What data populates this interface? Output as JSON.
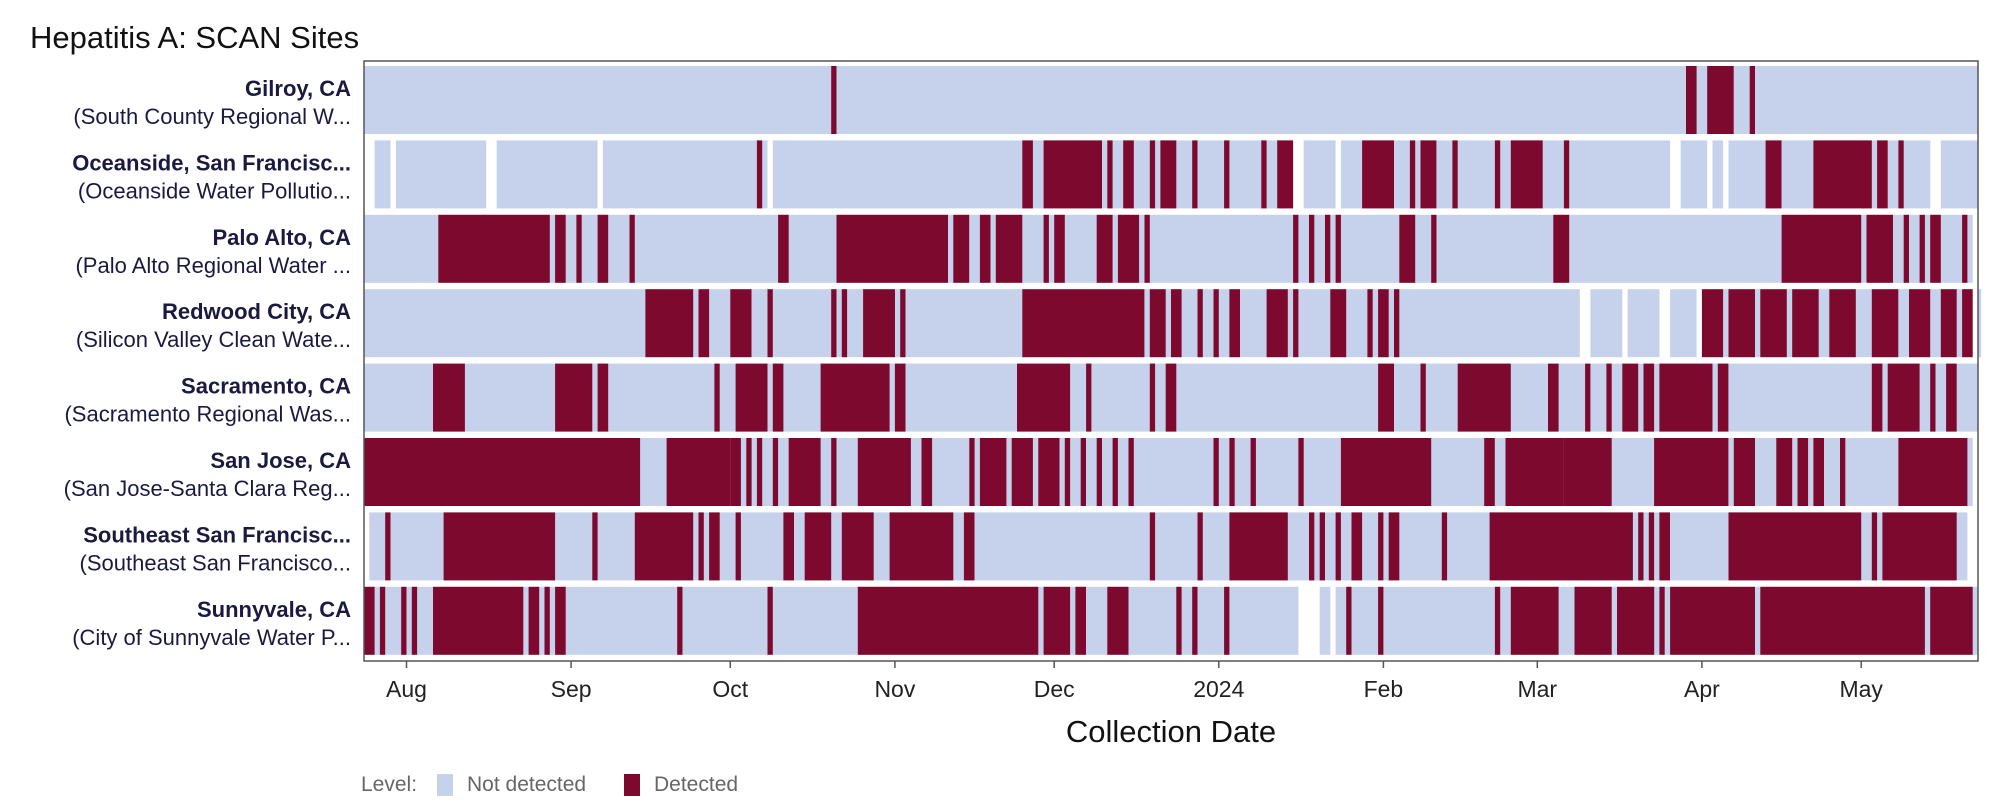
{
  "colors": {
    "not_detected": "#c6d1ec",
    "detected": "#7d0a2e",
    "gap": "#ffffff",
    "frame": "#555555"
  },
  "chart_data": {
    "type": "heatmap",
    "title": "Hepatitis A: SCAN Sites",
    "xlabel": "Collection Date",
    "x_range": [
      "2023-07-24",
      "2024-05-23"
    ],
    "x_ticks": [
      {
        "label": "Aug",
        "date": "2023-08-01"
      },
      {
        "label": "Sep",
        "date": "2023-09-01"
      },
      {
        "label": "Oct",
        "date": "2023-10-01"
      },
      {
        "label": "Nov",
        "date": "2023-11-01"
      },
      {
        "label": "Dec",
        "date": "2023-12-01"
      },
      {
        "label": "2024",
        "date": "2024-01-01"
      },
      {
        "label": "Feb",
        "date": "2024-02-01"
      },
      {
        "label": "Mar",
        "date": "2024-03-01"
      },
      {
        "label": "Apr",
        "date": "2024-04-01"
      },
      {
        "label": "May",
        "date": "2024-05-01"
      }
    ],
    "legend": {
      "title": "Level:",
      "items": [
        "Not detected",
        "Detected"
      ],
      "position": "bottom-left"
    },
    "sites": [
      {
        "name": "Gilroy, CA",
        "plant": "(South County Regional W...",
        "coverage": [
          [
            "2023-07-24",
            "2024-05-23"
          ]
        ],
        "detected": [
          [
            "2023-10-20",
            "2023-10-21"
          ],
          [
            "2024-03-29",
            "2024-03-31"
          ],
          [
            "2024-04-02",
            "2024-04-07"
          ],
          [
            "2024-04-10",
            "2024-04-11"
          ]
        ]
      },
      {
        "name": "Oceanside, San Francisc...",
        "plant": "(Oceanside Water Pollutio...",
        "coverage": [
          [
            "2023-07-26",
            "2023-07-29"
          ],
          [
            "2023-07-30",
            "2023-08-16"
          ],
          [
            "2023-08-18",
            "2023-09-06"
          ],
          [
            "2023-09-07",
            "2023-10-08"
          ],
          [
            "2023-10-09",
            "2024-01-15"
          ],
          [
            "2024-01-17",
            "2024-01-23"
          ],
          [
            "2024-01-24",
            "2024-03-26"
          ],
          [
            "2024-03-28",
            "2024-04-02"
          ],
          [
            "2024-04-03",
            "2024-04-05"
          ],
          [
            "2024-04-06",
            "2024-05-14"
          ],
          [
            "2024-05-16",
            "2024-05-23"
          ]
        ],
        "detected": [
          [
            "2023-10-06",
            "2023-10-07"
          ],
          [
            "2023-11-25",
            "2023-11-27"
          ],
          [
            "2023-11-29",
            "2023-12-10"
          ],
          [
            "2023-12-11",
            "2023-12-12"
          ],
          [
            "2023-12-14",
            "2023-12-16"
          ],
          [
            "2023-12-19",
            "2023-12-20"
          ],
          [
            "2023-12-21",
            "2023-12-24"
          ],
          [
            "2023-12-27",
            "2023-12-28"
          ],
          [
            "2024-01-02",
            "2024-01-03"
          ],
          [
            "2024-01-09",
            "2024-01-10"
          ],
          [
            "2024-01-12",
            "2024-01-15"
          ],
          [
            "2024-01-28",
            "2024-02-03"
          ],
          [
            "2024-02-06",
            "2024-02-07"
          ],
          [
            "2024-02-08",
            "2024-02-11"
          ],
          [
            "2024-02-14",
            "2024-02-15"
          ],
          [
            "2024-02-22",
            "2024-02-23"
          ],
          [
            "2024-02-25",
            "2024-03-02"
          ],
          [
            "2024-03-06",
            "2024-03-07"
          ],
          [
            "2024-04-13",
            "2024-04-16"
          ],
          [
            "2024-04-22",
            "2024-05-03"
          ],
          [
            "2024-05-04",
            "2024-05-06"
          ],
          [
            "2024-05-08",
            "2024-05-09"
          ]
        ]
      },
      {
        "name": "Palo Alto, CA",
        "plant": "(Palo Alto Regional Water ...",
        "coverage": [
          [
            "2023-07-24",
            "2024-05-22"
          ]
        ],
        "detected": [
          [
            "2023-08-07",
            "2023-08-28"
          ],
          [
            "2023-08-29",
            "2023-08-31"
          ],
          [
            "2023-09-02",
            "2023-09-03"
          ],
          [
            "2023-09-06",
            "2023-09-08"
          ],
          [
            "2023-09-12",
            "2023-09-13"
          ],
          [
            "2023-10-10",
            "2023-10-12"
          ],
          [
            "2023-10-21",
            "2023-11-11"
          ],
          [
            "2023-11-12",
            "2023-11-15"
          ],
          [
            "2023-11-17",
            "2023-11-19"
          ],
          [
            "2023-11-20",
            "2023-11-25"
          ],
          [
            "2023-11-29",
            "2023-11-30"
          ],
          [
            "2023-12-01",
            "2023-12-03"
          ],
          [
            "2023-12-09",
            "2023-12-12"
          ],
          [
            "2023-12-13",
            "2023-12-17"
          ],
          [
            "2023-12-18",
            "2023-12-19"
          ],
          [
            "2024-01-15",
            "2024-01-16"
          ],
          [
            "2024-01-18",
            "2024-01-19"
          ],
          [
            "2024-01-21",
            "2024-01-22"
          ],
          [
            "2024-01-23",
            "2024-01-24"
          ],
          [
            "2024-02-04",
            "2024-02-07"
          ],
          [
            "2024-02-10",
            "2024-02-11"
          ],
          [
            "2024-03-04",
            "2024-03-07"
          ],
          [
            "2024-04-16",
            "2024-05-01"
          ],
          [
            "2024-05-02",
            "2024-05-07"
          ],
          [
            "2024-05-09",
            "2024-05-10"
          ],
          [
            "2024-05-12",
            "2024-05-13"
          ],
          [
            "2024-05-14",
            "2024-05-16"
          ],
          [
            "2024-05-20",
            "2024-05-21"
          ]
        ]
      },
      {
        "name": "Redwood City, CA",
        "plant": "(Silicon Valley Clean Wate...",
        "coverage": [
          [
            "2023-07-24",
            "2024-03-09"
          ],
          [
            "2024-03-11",
            "2024-03-17"
          ],
          [
            "2024-03-18",
            "2024-03-24"
          ],
          [
            "2024-03-26",
            "2024-03-31"
          ],
          [
            "2024-04-02",
            "2024-05-12"
          ],
          [
            "2024-05-13",
            "2024-05-22"
          ],
          [
            "2024-05-23",
            "2024-05-23"
          ]
        ],
        "detected": [
          [
            "2023-09-15",
            "2023-09-24"
          ],
          [
            "2023-09-25",
            "2023-09-27"
          ],
          [
            "2023-10-01",
            "2023-10-05"
          ],
          [
            "2023-10-08",
            "2023-10-09"
          ],
          [
            "2023-10-20",
            "2023-10-21"
          ],
          [
            "2023-10-22",
            "2023-10-23"
          ],
          [
            "2023-10-26",
            "2023-11-01"
          ],
          [
            "2023-11-02",
            "2023-11-03"
          ],
          [
            "2023-11-25",
            "2023-12-18"
          ],
          [
            "2023-12-19",
            "2023-12-22"
          ],
          [
            "2023-12-23",
            "2023-12-25"
          ],
          [
            "2023-12-28",
            "2023-12-29"
          ],
          [
            "2023-12-31",
            "2024-01-01"
          ],
          [
            "2024-01-03",
            "2024-01-05"
          ],
          [
            "2024-01-10",
            "2024-01-14"
          ],
          [
            "2024-01-15",
            "2024-01-16"
          ],
          [
            "2024-01-22",
            "2024-01-25"
          ],
          [
            "2024-01-29",
            "2024-01-30"
          ],
          [
            "2024-01-31",
            "2024-02-02"
          ],
          [
            "2024-02-03",
            "2024-02-04"
          ],
          [
            "2024-04-01",
            "2024-04-05"
          ],
          [
            "2024-04-06",
            "2024-04-11"
          ],
          [
            "2024-04-12",
            "2024-04-17"
          ],
          [
            "2024-04-18",
            "2024-04-23"
          ],
          [
            "2024-04-25",
            "2024-04-30"
          ],
          [
            "2024-05-03",
            "2024-05-08"
          ],
          [
            "2024-05-10",
            "2024-05-14"
          ],
          [
            "2024-05-16",
            "2024-05-19"
          ],
          [
            "2024-05-20",
            "2024-05-22"
          ]
        ]
      },
      {
        "name": "Sacramento, CA",
        "plant": "(Sacramento Regional Was...",
        "coverage": [
          [
            "2023-07-24",
            "2024-05-23"
          ]
        ],
        "detected": [
          [
            "2023-08-06",
            "2023-08-12"
          ],
          [
            "2023-08-29",
            "2023-09-05"
          ],
          [
            "2023-09-06",
            "2023-09-08"
          ],
          [
            "2023-09-28",
            "2023-09-29"
          ],
          [
            "2023-10-02",
            "2023-10-08"
          ],
          [
            "2023-10-09",
            "2023-10-11"
          ],
          [
            "2023-10-18",
            "2023-10-31"
          ],
          [
            "2023-11-01",
            "2023-11-03"
          ],
          [
            "2023-11-24",
            "2023-12-04"
          ],
          [
            "2023-12-07",
            "2023-12-08"
          ],
          [
            "2023-12-19",
            "2023-12-20"
          ],
          [
            "2023-12-22",
            "2023-12-24"
          ],
          [
            "2024-01-31",
            "2024-02-03"
          ],
          [
            "2024-02-08",
            "2024-02-09"
          ],
          [
            "2024-02-15",
            "2024-02-25"
          ],
          [
            "2024-03-03",
            "2024-03-05"
          ],
          [
            "2024-03-10",
            "2024-03-11"
          ],
          [
            "2024-03-14",
            "2024-03-15"
          ],
          [
            "2024-03-17",
            "2024-03-20"
          ],
          [
            "2024-03-21",
            "2024-03-23"
          ],
          [
            "2024-03-24",
            "2024-04-03"
          ],
          [
            "2024-04-04",
            "2024-04-06"
          ],
          [
            "2024-05-03",
            "2024-05-05"
          ],
          [
            "2024-05-06",
            "2024-05-12"
          ],
          [
            "2024-05-14",
            "2024-05-15"
          ],
          [
            "2024-05-17",
            "2024-05-19"
          ]
        ]
      },
      {
        "name": "San Jose, CA",
        "plant": "(San Jose-Santa Clara Reg...",
        "coverage": [
          [
            "2023-07-24",
            "2024-05-22"
          ]
        ],
        "detected": [
          [
            "2023-07-24",
            "2023-09-14"
          ],
          [
            "2023-09-19",
            "2023-10-01"
          ],
          [
            "2023-10-01",
            "2023-10-03"
          ],
          [
            "2023-10-04",
            "2023-10-05"
          ],
          [
            "2023-10-06",
            "2023-10-07"
          ],
          [
            "2023-10-09",
            "2023-10-10"
          ],
          [
            "2023-10-12",
            "2023-10-18"
          ],
          [
            "2023-10-20",
            "2023-10-21"
          ],
          [
            "2023-10-25",
            "2023-11-04"
          ],
          [
            "2023-11-06",
            "2023-11-08"
          ],
          [
            "2023-11-15",
            "2023-11-16"
          ],
          [
            "2023-11-17",
            "2023-11-22"
          ],
          [
            "2023-11-23",
            "2023-11-27"
          ],
          [
            "2023-11-28",
            "2023-12-02"
          ],
          [
            "2023-12-03",
            "2023-12-04"
          ],
          [
            "2023-12-06",
            "2023-12-07"
          ],
          [
            "2023-12-09",
            "2023-12-10"
          ],
          [
            "2023-12-12",
            "2023-12-13"
          ],
          [
            "2023-12-15",
            "2023-12-16"
          ],
          [
            "2023-12-31",
            "2024-01-01"
          ],
          [
            "2024-01-03",
            "2024-01-04"
          ],
          [
            "2024-01-07",
            "2024-01-08"
          ],
          [
            "2024-01-16",
            "2024-01-17"
          ],
          [
            "2024-01-24",
            "2024-02-10"
          ],
          [
            "2024-02-20",
            "2024-02-22"
          ],
          [
            "2024-02-24",
            "2024-03-06"
          ],
          [
            "2024-03-06",
            "2024-03-15"
          ],
          [
            "2024-03-23",
            "2024-04-06"
          ],
          [
            "2024-04-07",
            "2024-04-11"
          ],
          [
            "2024-04-15",
            "2024-04-18"
          ],
          [
            "2024-04-19",
            "2024-04-21"
          ],
          [
            "2024-04-22",
            "2024-04-24"
          ],
          [
            "2024-04-27",
            "2024-04-28"
          ],
          [
            "2024-05-08",
            "2024-05-21"
          ]
        ]
      },
      {
        "name": "Southeast San Francisc...",
        "plant": "(Southeast San Francisco...",
        "coverage": [
          [
            "2023-07-25",
            "2024-05-21"
          ]
        ],
        "detected": [
          [
            "2023-07-28",
            "2023-07-29"
          ],
          [
            "2023-08-08",
            "2023-08-29"
          ],
          [
            "2023-09-05",
            "2023-09-06"
          ],
          [
            "2023-09-13",
            "2023-09-24"
          ],
          [
            "2023-09-25",
            "2023-09-26"
          ],
          [
            "2023-09-27",
            "2023-09-29"
          ],
          [
            "2023-10-02",
            "2023-10-03"
          ],
          [
            "2023-10-11",
            "2023-10-13"
          ],
          [
            "2023-10-15",
            "2023-10-20"
          ],
          [
            "2023-10-22",
            "2023-10-28"
          ],
          [
            "2023-10-31",
            "2023-11-12"
          ],
          [
            "2023-11-14",
            "2023-11-16"
          ],
          [
            "2023-12-19",
            "2023-12-20"
          ],
          [
            "2023-12-28",
            "2023-12-29"
          ],
          [
            "2024-01-03",
            "2024-01-14"
          ],
          [
            "2024-01-18",
            "2024-01-19"
          ],
          [
            "2024-01-20",
            "2024-01-21"
          ],
          [
            "2024-01-23",
            "2024-01-24"
          ],
          [
            "2024-01-26",
            "2024-01-28"
          ],
          [
            "2024-01-31",
            "2024-02-01"
          ],
          [
            "2024-02-02",
            "2024-02-04"
          ],
          [
            "2024-02-12",
            "2024-02-13"
          ],
          [
            "2024-02-21",
            "2024-03-19"
          ],
          [
            "2024-03-20",
            "2024-03-21"
          ],
          [
            "2024-03-22",
            "2024-03-23"
          ],
          [
            "2024-03-24",
            "2024-03-26"
          ],
          [
            "2024-04-06",
            "2024-05-01"
          ],
          [
            "2024-05-03",
            "2024-05-04"
          ],
          [
            "2024-05-05",
            "2024-05-19"
          ]
        ]
      },
      {
        "name": "Sunnyvale, CA",
        "plant": "(City of Sunnyvale Water P...",
        "coverage": [
          [
            "2023-07-24",
            "2024-01-16"
          ],
          [
            "2024-01-20",
            "2024-01-22"
          ],
          [
            "2024-01-23",
            "2024-05-23"
          ]
        ],
        "detected": [
          [
            "2023-07-24",
            "2023-07-26"
          ],
          [
            "2023-07-27",
            "2023-07-28"
          ],
          [
            "2023-07-31",
            "2023-08-01"
          ],
          [
            "2023-08-02",
            "2023-08-03"
          ],
          [
            "2023-08-06",
            "2023-08-23"
          ],
          [
            "2023-08-24",
            "2023-08-26"
          ],
          [
            "2023-08-27",
            "2023-08-28"
          ],
          [
            "2023-08-29",
            "2023-08-31"
          ],
          [
            "2023-09-21",
            "2023-09-22"
          ],
          [
            "2023-10-08",
            "2023-10-09"
          ],
          [
            "2023-10-25",
            "2023-11-28"
          ],
          [
            "2023-11-29",
            "2023-12-04"
          ],
          [
            "2023-12-05",
            "2023-12-07"
          ],
          [
            "2023-12-11",
            "2023-12-15"
          ],
          [
            "2023-12-24",
            "2023-12-25"
          ],
          [
            "2023-12-27",
            "2023-12-28"
          ],
          [
            "2024-01-02",
            "2024-01-03"
          ],
          [
            "2024-01-25",
            "2024-01-26"
          ],
          [
            "2024-01-31",
            "2024-02-01"
          ],
          [
            "2024-02-22",
            "2024-02-23"
          ],
          [
            "2024-02-25",
            "2024-03-05"
          ],
          [
            "2024-03-08",
            "2024-03-15"
          ],
          [
            "2024-03-16",
            "2024-03-23"
          ],
          [
            "2024-03-24",
            "2024-03-25"
          ],
          [
            "2024-03-26",
            "2024-04-01"
          ],
          [
            "2024-04-01",
            "2024-04-11"
          ],
          [
            "2024-04-12",
            "2024-05-13"
          ],
          [
            "2024-05-14",
            "2024-05-22"
          ]
        ]
      }
    ]
  }
}
